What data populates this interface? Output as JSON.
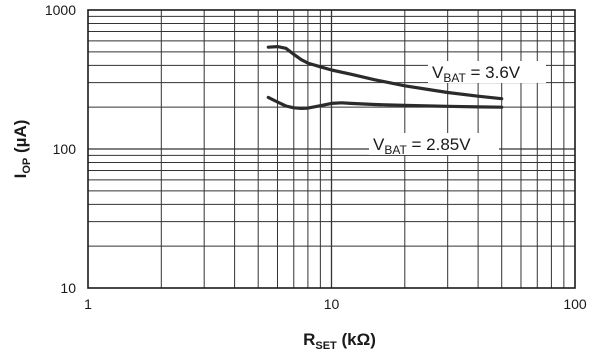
{
  "chart_data": {
    "type": "line",
    "xscale": "log",
    "yscale": "log",
    "xlim": [
      1,
      100
    ],
    "ylim": [
      10,
      1000
    ],
    "grid": true,
    "xlabel": {
      "main": "R",
      "sub": "SET",
      "unit": " (kΩ)"
    },
    "ylabel": {
      "main": "I",
      "sub": "OP",
      "unit": " (µA)"
    },
    "x_ticks": [
      {
        "value": 1,
        "label": "1"
      },
      {
        "value": 10,
        "label": "10"
      },
      {
        "value": 100,
        "label": "100"
      }
    ],
    "y_ticks": [
      {
        "value": 10,
        "label": "10"
      },
      {
        "value": 100,
        "label": "100"
      },
      {
        "value": 1000,
        "label": "1000"
      }
    ],
    "series": [
      {
        "name": "VBAT = 3.6V",
        "label": {
          "pre": "V",
          "sub": "BAT",
          "post": " = 3.6V"
        },
        "color": "#2b2b2b",
        "x": [
          5.5,
          6.0,
          6.5,
          7.0,
          7.5,
          8.0,
          9.0,
          10.0,
          12.0,
          15.0,
          20.0,
          25.0,
          30.0,
          40.0,
          50.0
        ],
        "y": [
          540,
          545,
          530,
          480,
          440,
          415,
          390,
          370,
          345,
          315,
          285,
          268,
          255,
          240,
          230
        ]
      },
      {
        "name": "VBAT = 2.85V",
        "label": {
          "pre": "V",
          "sub": "BAT",
          "post": " = 2.85V"
        },
        "color": "#2b2b2b",
        "x": [
          5.5,
          6.0,
          6.5,
          7.0,
          7.5,
          8.0,
          9.0,
          10.0,
          11.0,
          12.0,
          15.0,
          20.0,
          30.0,
          40.0,
          50.0
        ],
        "y": [
          235,
          218,
          204,
          198,
          196,
          197,
          205,
          213,
          215,
          213,
          209,
          206,
          203,
          201,
          200
        ]
      }
    ]
  }
}
